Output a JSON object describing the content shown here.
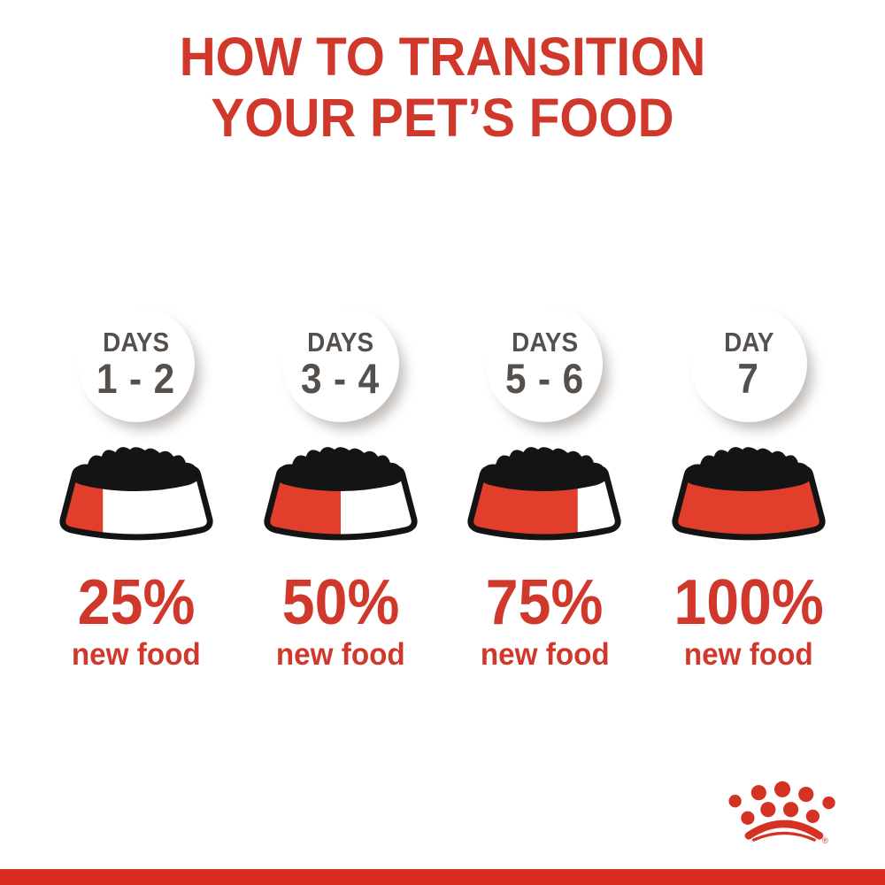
{
  "title": {
    "line1": "HOW TO TRANSITION",
    "line2": "YOUR PET’S FOOD"
  },
  "columns": [
    {
      "day_label": "DAYS",
      "day_range": "1 - 2",
      "percent": 25,
      "percent_label": "25%",
      "sub_label": "new food"
    },
    {
      "day_label": "DAYS",
      "day_range": "3 - 4",
      "percent": 50,
      "percent_label": "50%",
      "sub_label": "new food"
    },
    {
      "day_label": "DAYS",
      "day_range": "5 - 6",
      "percent": 75,
      "percent_label": "75%",
      "sub_label": "new food"
    },
    {
      "day_label": "DAY",
      "day_range": "7",
      "percent": 100,
      "percent_label": "100%",
      "sub_label": "new food"
    }
  ],
  "brand": {
    "logo": "royal-canin-crown",
    "registered_mark": "®"
  },
  "colors": {
    "accent_red": "#d0382b",
    "bowl_red": "#e23e2c",
    "bar_red": "#da2c20",
    "logo_red": "#d43222",
    "day_gray": "#56504d",
    "kibble_black": "#141414"
  }
}
